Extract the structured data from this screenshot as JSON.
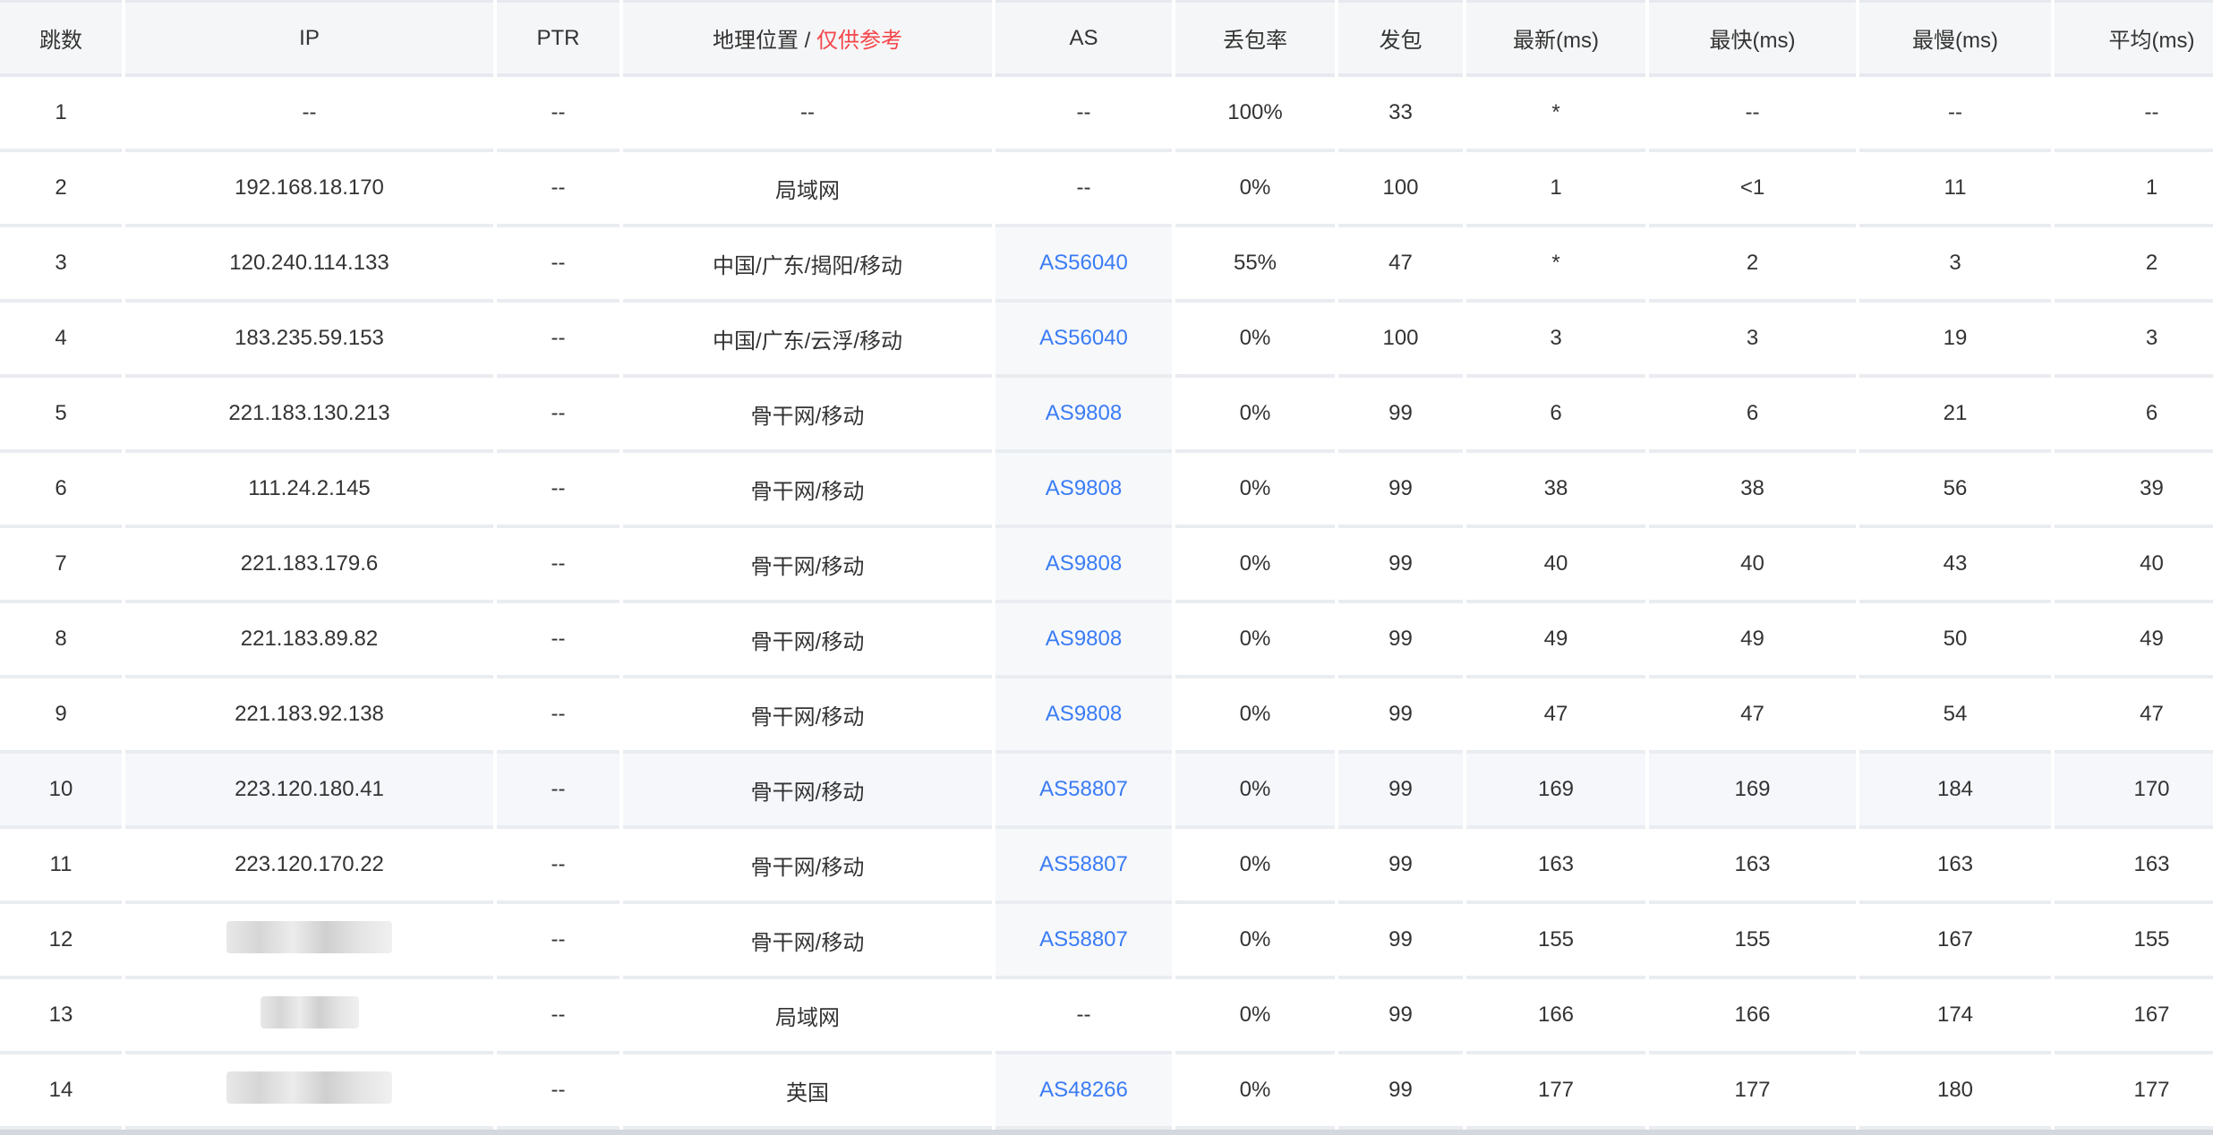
{
  "headers": {
    "hop": "跳数",
    "ip": "IP",
    "ptr": "PTR",
    "geo": "地理位置",
    "geo_sep": " / ",
    "geo_note": "仅供参考",
    "as": "AS",
    "loss": "丢包率",
    "sent": "发包",
    "last": "最新(ms)",
    "best": "最快(ms)",
    "worst": "最慢(ms)",
    "avg": "平均(ms)"
  },
  "colors": {
    "link": "#3a7cf5",
    "note": "#f5464b"
  },
  "rows": [
    {
      "hop": "1",
      "ip": "--",
      "ptr": "--",
      "geo": "--",
      "as": "--",
      "loss": "100%",
      "sent": "33",
      "last": "*",
      "best": "--",
      "worst": "--",
      "avg": "--"
    },
    {
      "hop": "2",
      "ip": "192.168.18.170",
      "ptr": "--",
      "geo": "局域网",
      "as": "--",
      "loss": "0%",
      "sent": "100",
      "last": "1",
      "best": "<1",
      "worst": "11",
      "avg": "1"
    },
    {
      "hop": "3",
      "ip": "120.240.114.133",
      "ptr": "--",
      "geo": "中国/广东/揭阳/移动",
      "as": "AS56040",
      "loss": "55%",
      "sent": "47",
      "last": "*",
      "best": "2",
      "worst": "3",
      "avg": "2"
    },
    {
      "hop": "4",
      "ip": "183.235.59.153",
      "ptr": "--",
      "geo": "中国/广东/云浮/移动",
      "as": "AS56040",
      "loss": "0%",
      "sent": "100",
      "last": "3",
      "best": "3",
      "worst": "19",
      "avg": "3"
    },
    {
      "hop": "5",
      "ip": "221.183.130.213",
      "ptr": "--",
      "geo": "骨干网/移动",
      "as": "AS9808",
      "loss": "0%",
      "sent": "99",
      "last": "6",
      "best": "6",
      "worst": "21",
      "avg": "6"
    },
    {
      "hop": "6",
      "ip": "111.24.2.145",
      "ptr": "--",
      "geo": "骨干网/移动",
      "as": "AS9808",
      "loss": "0%",
      "sent": "99",
      "last": "38",
      "best": "38",
      "worst": "56",
      "avg": "39"
    },
    {
      "hop": "7",
      "ip": "221.183.179.6",
      "ptr": "--",
      "geo": "骨干网/移动",
      "as": "AS9808",
      "loss": "0%",
      "sent": "99",
      "last": "40",
      "best": "40",
      "worst": "43",
      "avg": "40"
    },
    {
      "hop": "8",
      "ip": "221.183.89.82",
      "ptr": "--",
      "geo": "骨干网/移动",
      "as": "AS9808",
      "loss": "0%",
      "sent": "99",
      "last": "49",
      "best": "49",
      "worst": "50",
      "avg": "49"
    },
    {
      "hop": "9",
      "ip": "221.183.92.138",
      "ptr": "--",
      "geo": "骨干网/移动",
      "as": "AS9808",
      "loss": "0%",
      "sent": "99",
      "last": "47",
      "best": "47",
      "worst": "54",
      "avg": "47"
    },
    {
      "hop": "10",
      "ip": "223.120.180.41",
      "ptr": "--",
      "geo": "骨干网/移动",
      "as": "AS58807",
      "loss": "0%",
      "sent": "99",
      "last": "169",
      "best": "169",
      "worst": "184",
      "avg": "170",
      "highlighted": true
    },
    {
      "hop": "11",
      "ip": "223.120.170.22",
      "ptr": "--",
      "geo": "骨干网/移动",
      "as": "AS58807",
      "loss": "0%",
      "sent": "99",
      "last": "163",
      "best": "163",
      "worst": "163",
      "avg": "163"
    },
    {
      "hop": "12",
      "ip": null,
      "ip_blurred": true,
      "ptr": "--",
      "geo": "骨干网/移动",
      "as": "AS58807",
      "loss": "0%",
      "sent": "99",
      "last": "155",
      "best": "155",
      "worst": "167",
      "avg": "155"
    },
    {
      "hop": "13",
      "ip": null,
      "ip_blurred": true,
      "ptr": "--",
      "geo": "局域网",
      "as": "--",
      "loss": "0%",
      "sent": "99",
      "last": "166",
      "best": "166",
      "worst": "174",
      "avg": "167"
    },
    {
      "hop": "14",
      "ip": null,
      "ip_blurred": true,
      "ptr": "--",
      "geo": "英国",
      "as": "AS48266",
      "loss": "0%",
      "sent": "99",
      "last": "177",
      "best": "177",
      "worst": "180",
      "avg": "177"
    }
  ]
}
